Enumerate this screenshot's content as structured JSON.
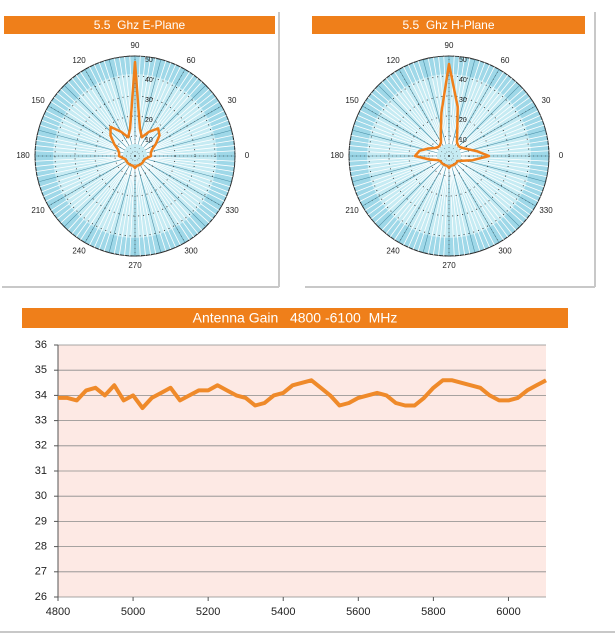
{
  "chart_data": [
    {
      "type": "polar",
      "title": "5.5  Ghz E-Plane",
      "color": "#ef7f1a",
      "theta": [
        0,
        10,
        20,
        30,
        40,
        50,
        60,
        70,
        80,
        90,
        100,
        110,
        120,
        130,
        140,
        150,
        160,
        170,
        180,
        190,
        200,
        210,
        220,
        230,
        240,
        250,
        260,
        270,
        280,
        290,
        300,
        310,
        320,
        330,
        340,
        350
      ],
      "values": [
        8,
        8,
        9,
        12,
        16,
        18,
        14,
        10,
        14,
        47,
        14,
        10,
        14,
        19,
        16,
        12,
        9,
        8,
        8,
        6,
        5,
        5,
        5,
        5,
        5,
        5,
        5,
        6,
        5,
        5,
        5,
        5,
        5,
        5,
        5,
        6
      ],
      "rlim": [
        0,
        50
      ],
      "rticks": [
        10,
        20,
        30,
        40,
        50
      ],
      "thetaticks": [
        0,
        30,
        60,
        90,
        120,
        150,
        180,
        210,
        240,
        270,
        300,
        330
      ]
    },
    {
      "type": "polar",
      "title": "5.5  Ghz H-Plane",
      "color": "#ef7f1a",
      "theta": [
        0,
        10,
        20,
        30,
        40,
        50,
        60,
        70,
        80,
        90,
        100,
        110,
        120,
        130,
        140,
        150,
        160,
        170,
        180,
        190,
        200,
        210,
        220,
        230,
        240,
        250,
        260,
        270,
        280,
        290,
        300,
        310,
        320,
        330,
        340,
        350
      ],
      "values": [
        20,
        14,
        10,
        8,
        7,
        7,
        8,
        12,
        25,
        46,
        22,
        12,
        8,
        7,
        7,
        8,
        11,
        15,
        17,
        10,
        6,
        5,
        5,
        5,
        5,
        5,
        5,
        6,
        5,
        5,
        5,
        5,
        5,
        5,
        7,
        12
      ],
      "rlim": [
        0,
        50
      ],
      "rticks": [
        10,
        20,
        30,
        40,
        50
      ],
      "thetaticks": [
        0,
        30,
        60,
        90,
        120,
        150,
        180,
        210,
        240,
        270,
        300,
        330
      ]
    },
    {
      "type": "line",
      "title": "Antenna Gain   4800 -6100  MHz",
      "color": "#ef8a2a",
      "x": [
        4800,
        4825,
        4850,
        4875,
        4900,
        4925,
        4950,
        4975,
        5000,
        5025,
        5050,
        5075,
        5100,
        5125,
        5150,
        5175,
        5200,
        5225,
        5250,
        5275,
        5300,
        5325,
        5350,
        5375,
        5400,
        5425,
        5450,
        5475,
        5500,
        5525,
        5550,
        5575,
        5600,
        5625,
        5650,
        5675,
        5700,
        5725,
        5750,
        5775,
        5800,
        5825,
        5850,
        5875,
        5900,
        5925,
        5950,
        5975,
        6000,
        6025,
        6050,
        6075,
        6100
      ],
      "values": [
        33.9,
        33.9,
        33.8,
        34.2,
        34.3,
        34.0,
        34.4,
        33.8,
        34.0,
        33.5,
        33.9,
        34.1,
        34.3,
        33.8,
        34.0,
        34.2,
        34.2,
        34.4,
        34.2,
        34.0,
        33.9,
        33.6,
        33.7,
        34.0,
        34.1,
        34.4,
        34.5,
        34.6,
        34.3,
        34.0,
        33.6,
        33.7,
        33.9,
        34.0,
        34.1,
        34.0,
        33.7,
        33.6,
        33.6,
        33.9,
        34.3,
        34.6,
        34.6,
        34.5,
        34.4,
        34.3,
        34.0,
        33.8,
        33.8,
        33.9,
        34.2,
        34.4,
        34.6
      ],
      "xlim": [
        4800,
        6100
      ],
      "xticks": [
        4800,
        5000,
        5200,
        5400,
        5600,
        5800,
        6000
      ],
      "ylim": [
        26,
        36
      ],
      "yticks": [
        26,
        27,
        28,
        29,
        30,
        31,
        32,
        33,
        34,
        35,
        36
      ],
      "grid": true
    }
  ]
}
